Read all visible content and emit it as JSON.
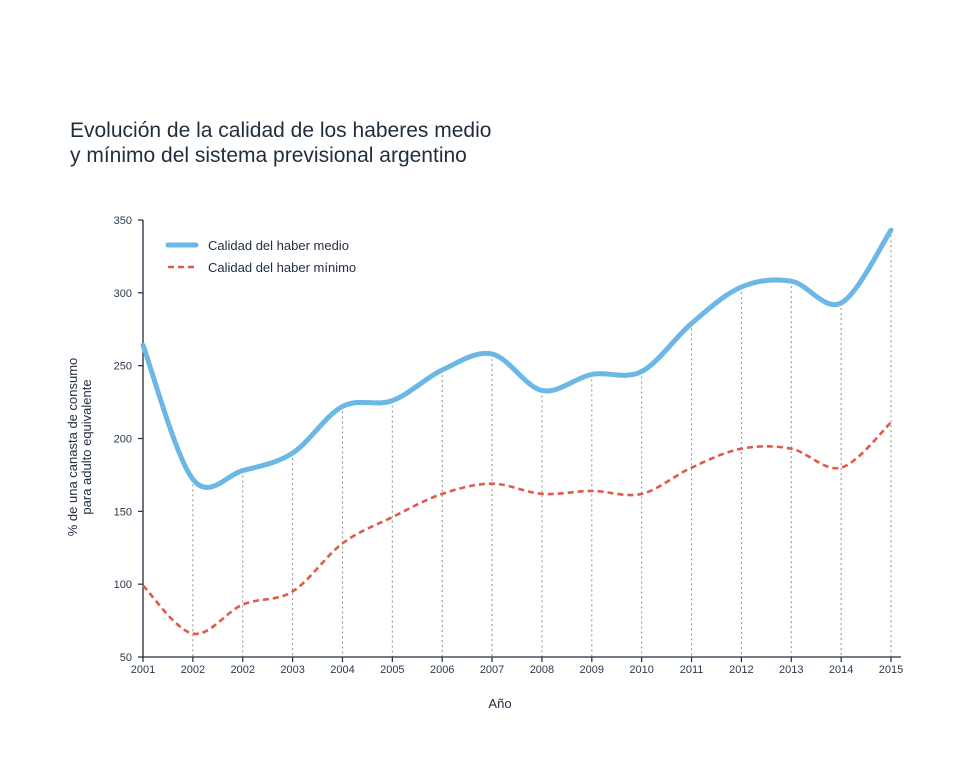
{
  "chart_data": {
    "type": "line",
    "title_line1": "Evolución de la calidad de los haberes medio",
    "title_line2": "y mínimo del sistema previsional argentino",
    "xlabel": "Año",
    "ylabel_line1": "% de una canasta de consumo",
    "ylabel_line2": "para adulto equivalente",
    "x": [
      "2001",
      "2002",
      "2002",
      "2003",
      "2004",
      "2005",
      "2006",
      "2007",
      "2008",
      "2009",
      "2010",
      "2011",
      "2012",
      "2013",
      "2014",
      "2015"
    ],
    "ylim": [
      50,
      350
    ],
    "yticks": [
      50,
      100,
      150,
      200,
      250,
      300,
      350
    ],
    "grid": "vertical dashed",
    "legend_position": "top-left",
    "series": [
      {
        "name": "Calidad del haber medio",
        "color": "#6bb8e6",
        "style": "solid",
        "values": [
          264,
          172,
          178,
          190,
          222,
          226,
          247,
          258,
          233,
          244,
          246,
          279,
          304,
          308,
          293,
          343
        ]
      },
      {
        "name": "Calidad del haber mínimo",
        "color": "#e05a4a",
        "style": "dashed",
        "values": [
          99,
          66,
          86,
          95,
          128,
          146,
          162,
          169,
          162,
          164,
          162,
          180,
          193,
          193,
          180,
          211
        ]
      }
    ]
  }
}
